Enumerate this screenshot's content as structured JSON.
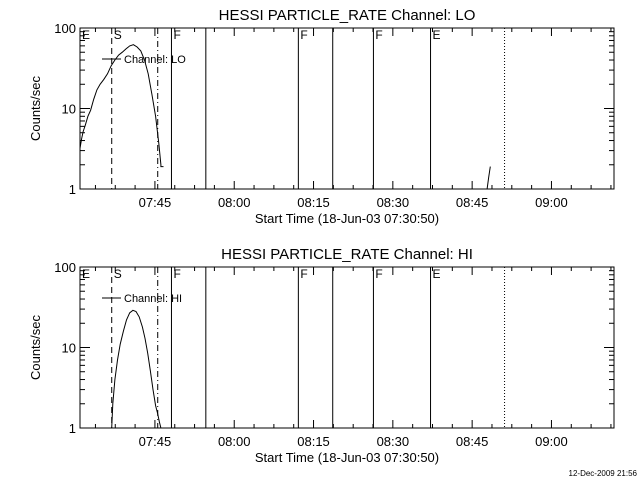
{
  "stamp": "12-Dec-2009 21:56",
  "chart_data": [
    {
      "type": "line",
      "title": "HESSI PARTICLE_RATE Channel: LO",
      "xlabel": "Start Time (18-Jun-03 07:30:50)",
      "ylabel": "Counts/sec",
      "yscale": "log",
      "ylim": [
        1,
        100
      ],
      "xlim_minutes": [
        0,
        101
      ],
      "xticks": [
        {
          "label": "07:45",
          "minutes": 14.17
        },
        {
          "label": "08:00",
          "minutes": 29.17
        },
        {
          "label": "08:15",
          "minutes": 44.17
        },
        {
          "label": "08:30",
          "minutes": 59.17
        },
        {
          "label": "08:45",
          "minutes": 74.17
        },
        {
          "label": "09:00",
          "minutes": 89.17
        }
      ],
      "yticks": [
        {
          "label": "1",
          "value": 1
        },
        {
          "label": "10",
          "value": 10
        },
        {
          "label": "100",
          "value": 100
        }
      ],
      "legend": {
        "entry": "Channel: LO",
        "placement": "top-left"
      },
      "markers": [
        {
          "label": "E",
          "minutes": 0,
          "style": "solid"
        },
        {
          "label": "S",
          "minutes": 6.0,
          "style": "dashed"
        },
        {
          "label": "",
          "minutes": 14.7,
          "style": "dashdot"
        },
        {
          "label": "F",
          "minutes": 17.3,
          "style": "solid"
        },
        {
          "label": "",
          "minutes": 23.8,
          "style": "solid"
        },
        {
          "label": "F",
          "minutes": 41.3,
          "style": "solid"
        },
        {
          "label": "",
          "minutes": 47.8,
          "style": "solid"
        },
        {
          "label": "F",
          "minutes": 55.5,
          "style": "solid"
        },
        {
          "label": "E",
          "minutes": 66.3,
          "style": "solid"
        },
        {
          "label": "",
          "minutes": 80.3,
          "style": "dotted"
        }
      ],
      "series": [
        {
          "x": [
            0,
            0.3,
            0.6,
            1.0,
            1.5,
            2.0,
            2.6,
            3.2,
            3.8,
            4.5,
            5.2,
            5.9,
            6.6,
            7.3,
            8.0,
            8.7,
            9.4,
            10.1,
            10.8,
            11.5,
            12.2,
            12.9,
            13.6,
            14.3,
            14.9,
            15.3,
            15.3,
            15.8
          ],
          "y": [
            3.2,
            4.2,
            5.2,
            6.2,
            8.0,
            9.5,
            13,
            17,
            20,
            23,
            27,
            34,
            40,
            46,
            50,
            55,
            60,
            62,
            58,
            52,
            40,
            27,
            15,
            8,
            3.7,
            2.0,
            1.9,
            1.9
          ]
        },
        {
          "x": [
            77.0,
            77.3,
            77.6
          ],
          "y": [
            1.0,
            1.4,
            1.9
          ]
        }
      ]
    },
    {
      "type": "line",
      "title": "HESSI PARTICLE_RATE Channel: HI",
      "xlabel": "Start Time (18-Jun-03 07:30:50)",
      "ylabel": "Counts/sec",
      "yscale": "log",
      "ylim": [
        1,
        100
      ],
      "xlim_minutes": [
        0,
        101
      ],
      "xticks": [
        {
          "label": "07:45",
          "minutes": 14.17
        },
        {
          "label": "08:00",
          "minutes": 29.17
        },
        {
          "label": "08:15",
          "minutes": 44.17
        },
        {
          "label": "08:30",
          "minutes": 59.17
        },
        {
          "label": "08:45",
          "minutes": 74.17
        },
        {
          "label": "09:00",
          "minutes": 89.17
        }
      ],
      "yticks": [
        {
          "label": "1",
          "value": 1
        },
        {
          "label": "10",
          "value": 10
        },
        {
          "label": "100",
          "value": 100
        }
      ],
      "legend": {
        "entry": "Channel: HI",
        "placement": "top-left"
      },
      "markers": [
        {
          "label": "E",
          "minutes": 0,
          "style": "solid"
        },
        {
          "label": "S",
          "minutes": 6.0,
          "style": "dashed"
        },
        {
          "label": "",
          "minutes": 14.7,
          "style": "dashdot"
        },
        {
          "label": "F",
          "minutes": 17.3,
          "style": "solid"
        },
        {
          "label": "",
          "minutes": 23.8,
          "style": "solid"
        },
        {
          "label": "F",
          "minutes": 41.3,
          "style": "solid"
        },
        {
          "label": "",
          "minutes": 47.8,
          "style": "solid"
        },
        {
          "label": "F",
          "minutes": 55.5,
          "style": "solid"
        },
        {
          "label": "E",
          "minutes": 66.3,
          "style": "solid"
        },
        {
          "label": "",
          "minutes": 80.3,
          "style": "dotted"
        }
      ],
      "series": [
        {
          "x": [
            6.0,
            6.2,
            6.6,
            7.1,
            7.6,
            8.2,
            8.8,
            9.4,
            10.0,
            10.6,
            11.2,
            11.8,
            12.3,
            12.8,
            13.3,
            13.8,
            14.3,
            14.7,
            15.0,
            15.3
          ],
          "y": [
            1.0,
            2.0,
            4.0,
            7.0,
            11,
            16,
            22,
            27,
            29,
            28,
            24,
            18,
            13,
            8.5,
            5.2,
            3.0,
            1.9,
            1.5,
            1.2,
            1.0
          ]
        }
      ]
    }
  ]
}
